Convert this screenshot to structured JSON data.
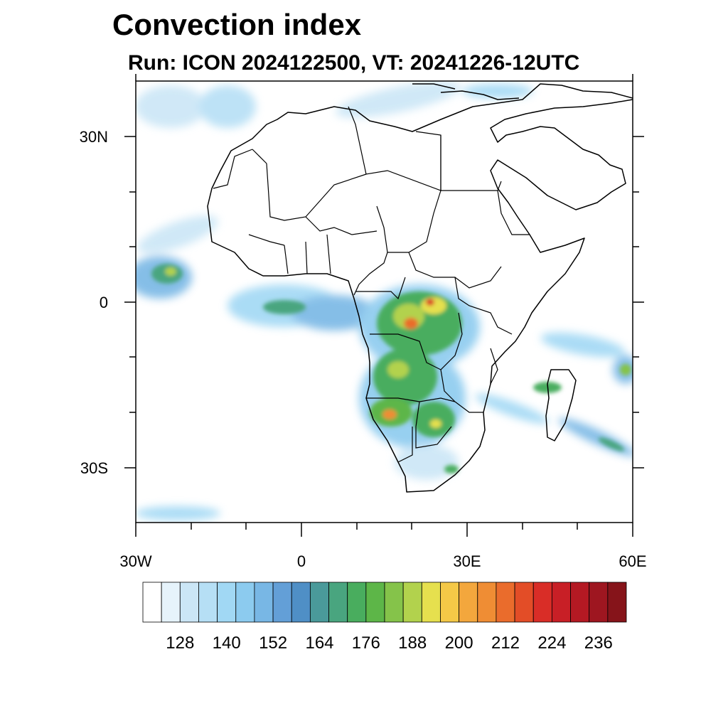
{
  "header": {
    "title": "Convection index",
    "subtitle": "Run: ICON 2024122500,  VT: 20241226-12UTC"
  },
  "axes": {
    "y_labels": [
      "30N",
      "0",
      "30S"
    ],
    "x_labels": [
      "30W",
      "0",
      "30E",
      "60E"
    ]
  },
  "colorbar": {
    "labels": [
      "128",
      "140",
      "152",
      "164",
      "176",
      "188",
      "200",
      "212",
      "224",
      "236"
    ],
    "colors": [
      "#ffffff",
      "#e6f3fb",
      "#cbe6f6",
      "#b6dff5",
      "#a1d8f4",
      "#8ccbef",
      "#78b7e5",
      "#639fd7",
      "#4f8fc6",
      "#4a9a9a",
      "#49a57f",
      "#49ad5e",
      "#5db648",
      "#85c34a",
      "#b2d24d",
      "#e6e04e",
      "#f4c847",
      "#f3a73d",
      "#ef8d34",
      "#ea6c2c",
      "#e34d27",
      "#d92d27",
      "#c81f26",
      "#b41923",
      "#9e1620",
      "#86141a"
    ]
  },
  "legend_note": ""
}
